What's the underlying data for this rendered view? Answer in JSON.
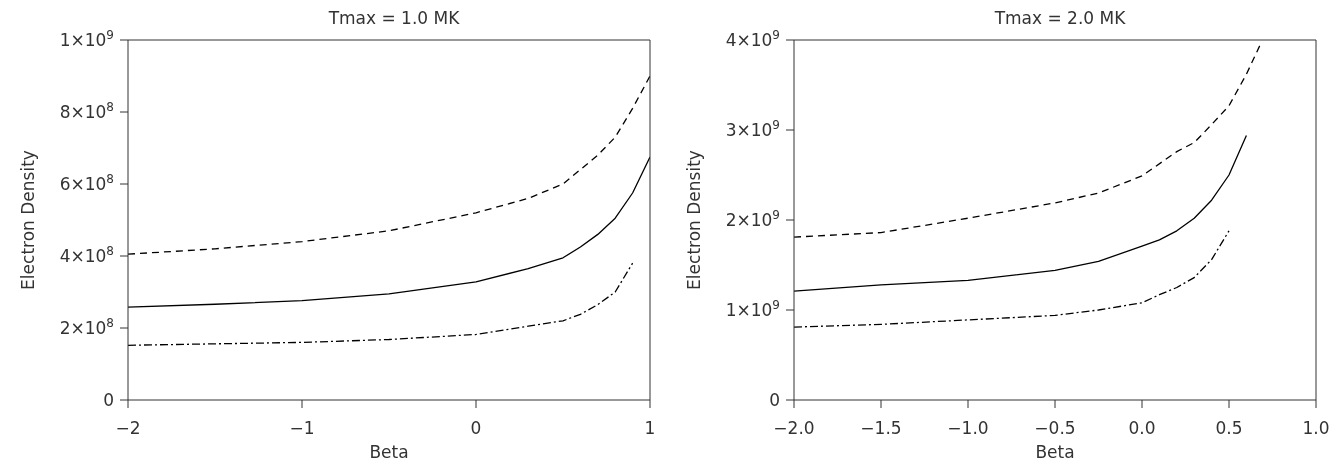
{
  "chart_data": [
    {
      "type": "line",
      "title": "Tmax = 1.0 MK",
      "xlabel": "Beta",
      "ylabel": "Electron Density",
      "xlim": [
        -2,
        1
      ],
      "xticks": [
        {
          "value": -2,
          "label": "−2"
        },
        {
          "value": -1,
          "label": "−1"
        },
        0,
        1
      ],
      "ylim": [
        0,
        1000000000
      ],
      "yticks": [
        0,
        {
          "value": 200000000,
          "label": "2×10$^{8}$"
        },
        {
          "value": 400000000,
          "label": "4×10$^{8}$"
        },
        {
          "value": 600000000,
          "label": "6×10$^{8}$"
        },
        {
          "value": 800000000,
          "label": "8×10$^{8}$"
        },
        {
          "value": 1000000000,
          "label": "1×10$^{9}$"
        }
      ],
      "grid": false,
      "legend": false,
      "marker": "none",
      "series": [
        {
          "color": "#000000",
          "line_style": "dashed",
          "x": [
            -2,
            -1.5,
            -1,
            -0.5,
            0,
            0.3,
            0.5,
            0.7,
            0.8,
            0.9,
            1
          ],
          "values": [
            405000000,
            420000000,
            440000000,
            470000000,
            520000000,
            560000000,
            600000000,
            680000000,
            730000000,
            810000000,
            900000000
          ]
        },
        {
          "color": "#000000",
          "line_style": "solid",
          "x": [
            -2,
            -1.5,
            -1,
            -0.5,
            0,
            0.3,
            0.5,
            0.6,
            0.7,
            0.8,
            0.9,
            1
          ],
          "values": [
            258000000,
            266000000,
            276000000,
            295000000,
            328000000,
            365000000,
            395000000,
            425000000,
            460000000,
            505000000,
            575000000,
            675000000
          ]
        },
        {
          "color": "#000000",
          "line_style": "dashdot",
          "x": [
            -2,
            -1,
            -0.5,
            0,
            0.3,
            0.5,
            0.6,
            0.7,
            0.8,
            0.9
          ],
          "values": [
            152000000,
            160000000,
            168000000,
            182000000,
            205000000,
            220000000,
            238000000,
            265000000,
            300000000,
            380000000
          ]
        }
      ]
    },
    {
      "type": "line",
      "title": "Tmax = 2.0 MK",
      "xlabel": "Beta",
      "ylabel": "Electron Density",
      "xlim": [
        -2,
        1
      ],
      "xticks": [
        {
          "value": -2,
          "label": "−2.0"
        },
        {
          "value": -1.5,
          "label": "−1.5"
        },
        {
          "value": -1,
          "label": "−1.0"
        },
        {
          "value": -0.5,
          "label": "−0.5"
        },
        {
          "value": 0,
          "label": "0.0"
        },
        {
          "value": 0.5,
          "label": "0.5"
        },
        {
          "value": 1,
          "label": "1.0"
        }
      ],
      "ylim": [
        0,
        4000000000
      ],
      "yticks": [
        0,
        {
          "value": 1000000000,
          "label": "1×10$^{9}$"
        },
        {
          "value": 2000000000,
          "label": "2×10$^{9}$"
        },
        {
          "value": 3000000000,
          "label": "3×10$^{9}$"
        },
        {
          "value": 4000000000,
          "label": "4×10$^{9}$"
        }
      ],
      "grid": false,
      "legend": false,
      "marker": "none",
      "series": [
        {
          "color": "#000000",
          "line_style": "dashed",
          "x": [
            -2,
            -1.5,
            -1,
            -0.5,
            -0.25,
            0,
            0.2,
            0.3,
            0.4,
            0.5,
            0.6,
            0.68
          ],
          "values": [
            1810000000,
            1860000000,
            2020000000,
            2190000000,
            2300000000,
            2490000000,
            2760000000,
            2860000000,
            3060000000,
            3270000000,
            3620000000,
            3950000000
          ]
        },
        {
          "color": "#000000",
          "line_style": "solid",
          "x": [
            -2,
            -1.5,
            -1,
            -0.5,
            -0.25,
            0,
            0.1,
            0.2,
            0.3,
            0.4,
            0.5,
            0.6
          ],
          "values": [
            1210000000,
            1280000000,
            1330000000,
            1440000000,
            1540000000,
            1710000000,
            1780000000,
            1880000000,
            2020000000,
            2220000000,
            2500000000,
            2940000000
          ]
        },
        {
          "color": "#000000",
          "line_style": "dashdot",
          "x": [
            -2,
            -1.5,
            -1,
            -0.5,
            -0.25,
            0,
            0.1,
            0.2,
            0.3,
            0.4,
            0.5
          ],
          "values": [
            810000000,
            840000000,
            890000000,
            940000000,
            1000000000,
            1080000000,
            1170000000,
            1250000000,
            1360000000,
            1560000000,
            1880000000
          ]
        }
      ]
    }
  ]
}
